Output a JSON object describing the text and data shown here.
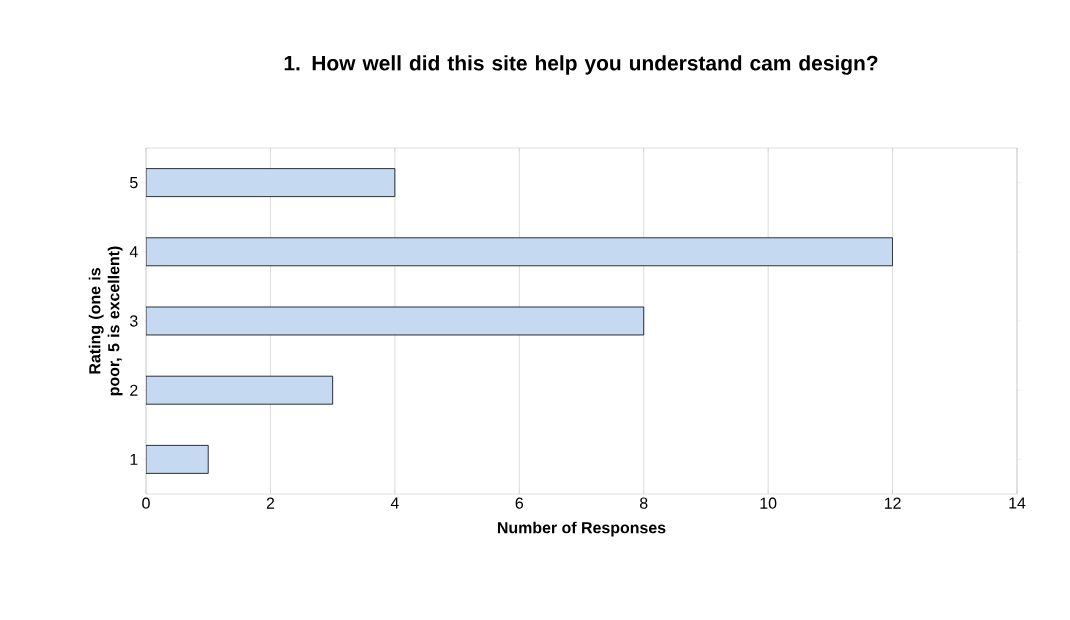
{
  "chart_data": {
    "type": "bar",
    "orientation": "horizontal",
    "title": "1.  How well did this site help you understand cam design?",
    "xlabel": "Number of Responses",
    "ylabel": "Rating (one is poor, 5 is excellent)",
    "categories": [
      "5",
      "4",
      "3",
      "2",
      "1"
    ],
    "values": [
      4,
      12,
      8,
      3,
      1
    ],
    "color": "#c5d9f1",
    "xlim": [
      0,
      14
    ],
    "xticks": [
      0,
      2,
      4,
      6,
      8,
      10,
      12,
      14
    ],
    "grid": "x"
  }
}
